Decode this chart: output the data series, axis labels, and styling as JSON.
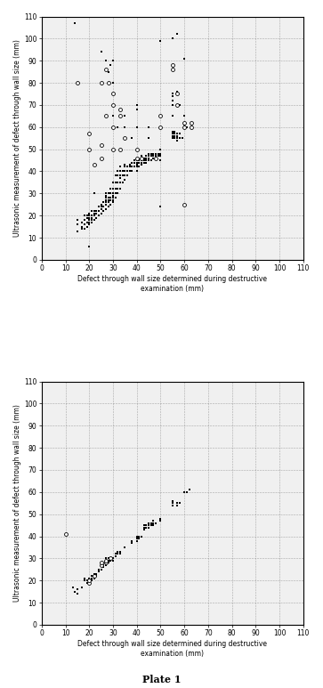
{
  "chart1_filled": [
    [
      14,
      107
    ],
    [
      20,
      6
    ],
    [
      15,
      13
    ],
    [
      15,
      16
    ],
    [
      15,
      18
    ],
    [
      17,
      14
    ],
    [
      17,
      15
    ],
    [
      17,
      17
    ],
    [
      18,
      14
    ],
    [
      18,
      16
    ],
    [
      18,
      18
    ],
    [
      18,
      20
    ],
    [
      19,
      15
    ],
    [
      19,
      17
    ],
    [
      19,
      19
    ],
    [
      19,
      20
    ],
    [
      20,
      16
    ],
    [
      20,
      17
    ],
    [
      20,
      18
    ],
    [
      20,
      19
    ],
    [
      20,
      20
    ],
    [
      20,
      21
    ],
    [
      21,
      17
    ],
    [
      21,
      18
    ],
    [
      21,
      19
    ],
    [
      21,
      20
    ],
    [
      21,
      22
    ],
    [
      22,
      18
    ],
    [
      22,
      20
    ],
    [
      22,
      21
    ],
    [
      22,
      22
    ],
    [
      23,
      19
    ],
    [
      23,
      21
    ],
    [
      23,
      22
    ],
    [
      24,
      20
    ],
    [
      24,
      22
    ],
    [
      24,
      24
    ],
    [
      25,
      21
    ],
    [
      25,
      23
    ],
    [
      25,
      24
    ],
    [
      25,
      25
    ],
    [
      26,
      22
    ],
    [
      26,
      24
    ],
    [
      26,
      26
    ],
    [
      27,
      23
    ],
    [
      27,
      25
    ],
    [
      27,
      26
    ],
    [
      27,
      27
    ],
    [
      27,
      28
    ],
    [
      27,
      29
    ],
    [
      27,
      30
    ],
    [
      28,
      24
    ],
    [
      28,
      26
    ],
    [
      28,
      27
    ],
    [
      28,
      28
    ],
    [
      28,
      30
    ],
    [
      29,
      25
    ],
    [
      29,
      27
    ],
    [
      29,
      28
    ],
    [
      29,
      30
    ],
    [
      29,
      32
    ],
    [
      30,
      26
    ],
    [
      30,
      27
    ],
    [
      30,
      28
    ],
    [
      30,
      29
    ],
    [
      30,
      30
    ],
    [
      30,
      32
    ],
    [
      30,
      35
    ],
    [
      31,
      28
    ],
    [
      31,
      30
    ],
    [
      31,
      32
    ],
    [
      31,
      35
    ],
    [
      31,
      38
    ],
    [
      32,
      30
    ],
    [
      32,
      32
    ],
    [
      32,
      35
    ],
    [
      32,
      38
    ],
    [
      32,
      40
    ],
    [
      33,
      32
    ],
    [
      33,
      35
    ],
    [
      33,
      37
    ],
    [
      33,
      38
    ],
    [
      33,
      40
    ],
    [
      33,
      42
    ],
    [
      34,
      35
    ],
    [
      34,
      38
    ],
    [
      34,
      40
    ],
    [
      35,
      36
    ],
    [
      35,
      38
    ],
    [
      35,
      40
    ],
    [
      35,
      42
    ],
    [
      35,
      43
    ],
    [
      36,
      38
    ],
    [
      36,
      40
    ],
    [
      36,
      42
    ],
    [
      37,
      40
    ],
    [
      37,
      42
    ],
    [
      37,
      43
    ],
    [
      38,
      40
    ],
    [
      38,
      42
    ],
    [
      38,
      44
    ],
    [
      39,
      42
    ],
    [
      39,
      44
    ],
    [
      39,
      45
    ],
    [
      40,
      40
    ],
    [
      40,
      42
    ],
    [
      40,
      43
    ],
    [
      40,
      44
    ],
    [
      40,
      45
    ],
    [
      40,
      46
    ],
    [
      41,
      42
    ],
    [
      41,
      44
    ],
    [
      41,
      45
    ],
    [
      42,
      43
    ],
    [
      42,
      44
    ],
    [
      42,
      45
    ],
    [
      42,
      46
    ],
    [
      42,
      47
    ],
    [
      43,
      44
    ],
    [
      43,
      45
    ],
    [
      43,
      46
    ],
    [
      44,
      44
    ],
    [
      44,
      45
    ],
    [
      44,
      46
    ],
    [
      44,
      47
    ],
    [
      45,
      45
    ],
    [
      45,
      46
    ],
    [
      45,
      47
    ],
    [
      45,
      48
    ],
    [
      46,
      45
    ],
    [
      46,
      47
    ],
    [
      46,
      48
    ],
    [
      47,
      46
    ],
    [
      47,
      47
    ],
    [
      47,
      48
    ],
    [
      48,
      46
    ],
    [
      48,
      47
    ],
    [
      48,
      48
    ],
    [
      49,
      47
    ],
    [
      49,
      48
    ],
    [
      50,
      45
    ],
    [
      50,
      47
    ],
    [
      50,
      48
    ],
    [
      50,
      50
    ],
    [
      55,
      55
    ],
    [
      55,
      56
    ],
    [
      55,
      57
    ],
    [
      55,
      58
    ],
    [
      55,
      100
    ],
    [
      56,
      55
    ],
    [
      56,
      56
    ],
    [
      56,
      57
    ],
    [
      56,
      58
    ],
    [
      57,
      54
    ],
    [
      57,
      55
    ],
    [
      57,
      56
    ],
    [
      57,
      57
    ],
    [
      58,
      55
    ],
    [
      58,
      57
    ],
    [
      59,
      55
    ],
    [
      60,
      60
    ],
    [
      60,
      61
    ],
    [
      61,
      60
    ],
    [
      22,
      30
    ],
    [
      25,
      94
    ],
    [
      27,
      90
    ],
    [
      27,
      86
    ],
    [
      28,
      85
    ],
    [
      29,
      88
    ],
    [
      30,
      90
    ],
    [
      30,
      65
    ],
    [
      30,
      70
    ],
    [
      30,
      75
    ],
    [
      30,
      80
    ],
    [
      32,
      60
    ],
    [
      33,
      65
    ],
    [
      33,
      68
    ],
    [
      35,
      60
    ],
    [
      35,
      65
    ],
    [
      38,
      55
    ],
    [
      40,
      60
    ],
    [
      40,
      68
    ],
    [
      40,
      70
    ],
    [
      45,
      55
    ],
    [
      45,
      60
    ],
    [
      48,
      47
    ],
    [
      50,
      24
    ],
    [
      55,
      65
    ],
    [
      55,
      70
    ],
    [
      55,
      72
    ],
    [
      55,
      74
    ],
    [
      55,
      75
    ],
    [
      57,
      70
    ],
    [
      57,
      75
    ],
    [
      57,
      76
    ],
    [
      58,
      70
    ],
    [
      60,
      65
    ],
    [
      63,
      60
    ],
    [
      50,
      99
    ],
    [
      57,
      102
    ],
    [
      60,
      91
    ],
    [
      50,
      50
    ]
  ],
  "chart1_open": [
    [
      15,
      80
    ],
    [
      20,
      50
    ],
    [
      20,
      57
    ],
    [
      22,
      43
    ],
    [
      25,
      46
    ],
    [
      25,
      52
    ],
    [
      25,
      80
    ],
    [
      27,
      65
    ],
    [
      27,
      86
    ],
    [
      28,
      80
    ],
    [
      30,
      50
    ],
    [
      30,
      60
    ],
    [
      30,
      70
    ],
    [
      30,
      75
    ],
    [
      33,
      50
    ],
    [
      33,
      65
    ],
    [
      33,
      68
    ],
    [
      35,
      55
    ],
    [
      40,
      46
    ],
    [
      40,
      50
    ],
    [
      42,
      46
    ],
    [
      48,
      46
    ],
    [
      50,
      60
    ],
    [
      50,
      65
    ],
    [
      55,
      86
    ],
    [
      55,
      88
    ],
    [
      57,
      70
    ],
    [
      57,
      75
    ],
    [
      60,
      60
    ],
    [
      60,
      62
    ],
    [
      63,
      60
    ],
    [
      63,
      62
    ],
    [
      60,
      25
    ]
  ],
  "chart2_filled": [
    [
      13,
      17
    ],
    [
      14,
      15
    ],
    [
      15,
      14
    ],
    [
      15,
      16
    ],
    [
      17,
      17
    ],
    [
      18,
      20
    ],
    [
      18,
      21
    ],
    [
      19,
      19
    ],
    [
      19,
      20
    ],
    [
      20,
      19
    ],
    [
      20,
      20
    ],
    [
      20,
      21
    ],
    [
      21,
      20
    ],
    [
      21,
      21
    ],
    [
      21,
      22
    ],
    [
      22,
      21
    ],
    [
      22,
      22
    ],
    [
      22,
      23
    ],
    [
      23,
      22
    ],
    [
      23,
      23
    ],
    [
      24,
      24
    ],
    [
      24,
      25
    ],
    [
      25,
      25
    ],
    [
      25,
      27
    ],
    [
      25,
      28
    ],
    [
      26,
      26
    ],
    [
      26,
      27
    ],
    [
      27,
      27
    ],
    [
      27,
      28
    ],
    [
      27,
      29
    ],
    [
      27,
      30
    ],
    [
      28,
      28
    ],
    [
      28,
      29
    ],
    [
      28,
      30
    ],
    [
      29,
      29
    ],
    [
      29,
      30
    ],
    [
      30,
      29
    ],
    [
      30,
      30
    ],
    [
      31,
      31
    ],
    [
      31,
      32
    ],
    [
      32,
      32
    ],
    [
      32,
      33
    ],
    [
      33,
      32
    ],
    [
      33,
      33
    ],
    [
      35,
      35
    ],
    [
      38,
      37
    ],
    [
      38,
      38
    ],
    [
      40,
      38
    ],
    [
      40,
      39
    ],
    [
      40,
      40
    ],
    [
      41,
      39
    ],
    [
      41,
      40
    ],
    [
      42,
      40
    ],
    [
      43,
      43
    ],
    [
      43,
      44
    ],
    [
      43,
      45
    ],
    [
      44,
      44
    ],
    [
      44,
      45
    ],
    [
      45,
      44
    ],
    [
      45,
      45
    ],
    [
      45,
      46
    ],
    [
      46,
      45
    ],
    [
      46,
      46
    ],
    [
      47,
      45
    ],
    [
      47,
      46
    ],
    [
      47,
      47
    ],
    [
      48,
      46
    ],
    [
      50,
      47
    ],
    [
      50,
      48
    ],
    [
      55,
      54
    ],
    [
      55,
      55
    ],
    [
      55,
      56
    ],
    [
      57,
      54
    ],
    [
      57,
      55
    ],
    [
      58,
      55
    ],
    [
      60,
      60
    ],
    [
      61,
      60
    ],
    [
      62,
      61
    ]
  ],
  "chart2_open": [
    [
      20,
      19
    ],
    [
      20,
      20
    ],
    [
      22,
      22
    ],
    [
      25,
      27
    ],
    [
      25,
      28
    ],
    [
      27,
      28
    ],
    [
      27,
      29
    ],
    [
      29,
      30
    ],
    [
      10,
      41
    ]
  ],
  "xlabel": "Defect through wall size determined during destructive\nexamination (mm)",
  "ylabel": "Ultrasonic measurement of defect through wall size (mm)",
  "title": "Plate 1",
  "xlim": [
    0,
    110
  ],
  "ylim": [
    0,
    110
  ],
  "xticks": [
    0,
    10,
    20,
    30,
    40,
    50,
    60,
    70,
    80,
    90,
    100,
    110
  ],
  "yticks": [
    0,
    10,
    20,
    30,
    40,
    50,
    60,
    70,
    80,
    90,
    100,
    110
  ],
  "bg_color": "#ffffff",
  "plot_bg_color": "#f0f0f0"
}
